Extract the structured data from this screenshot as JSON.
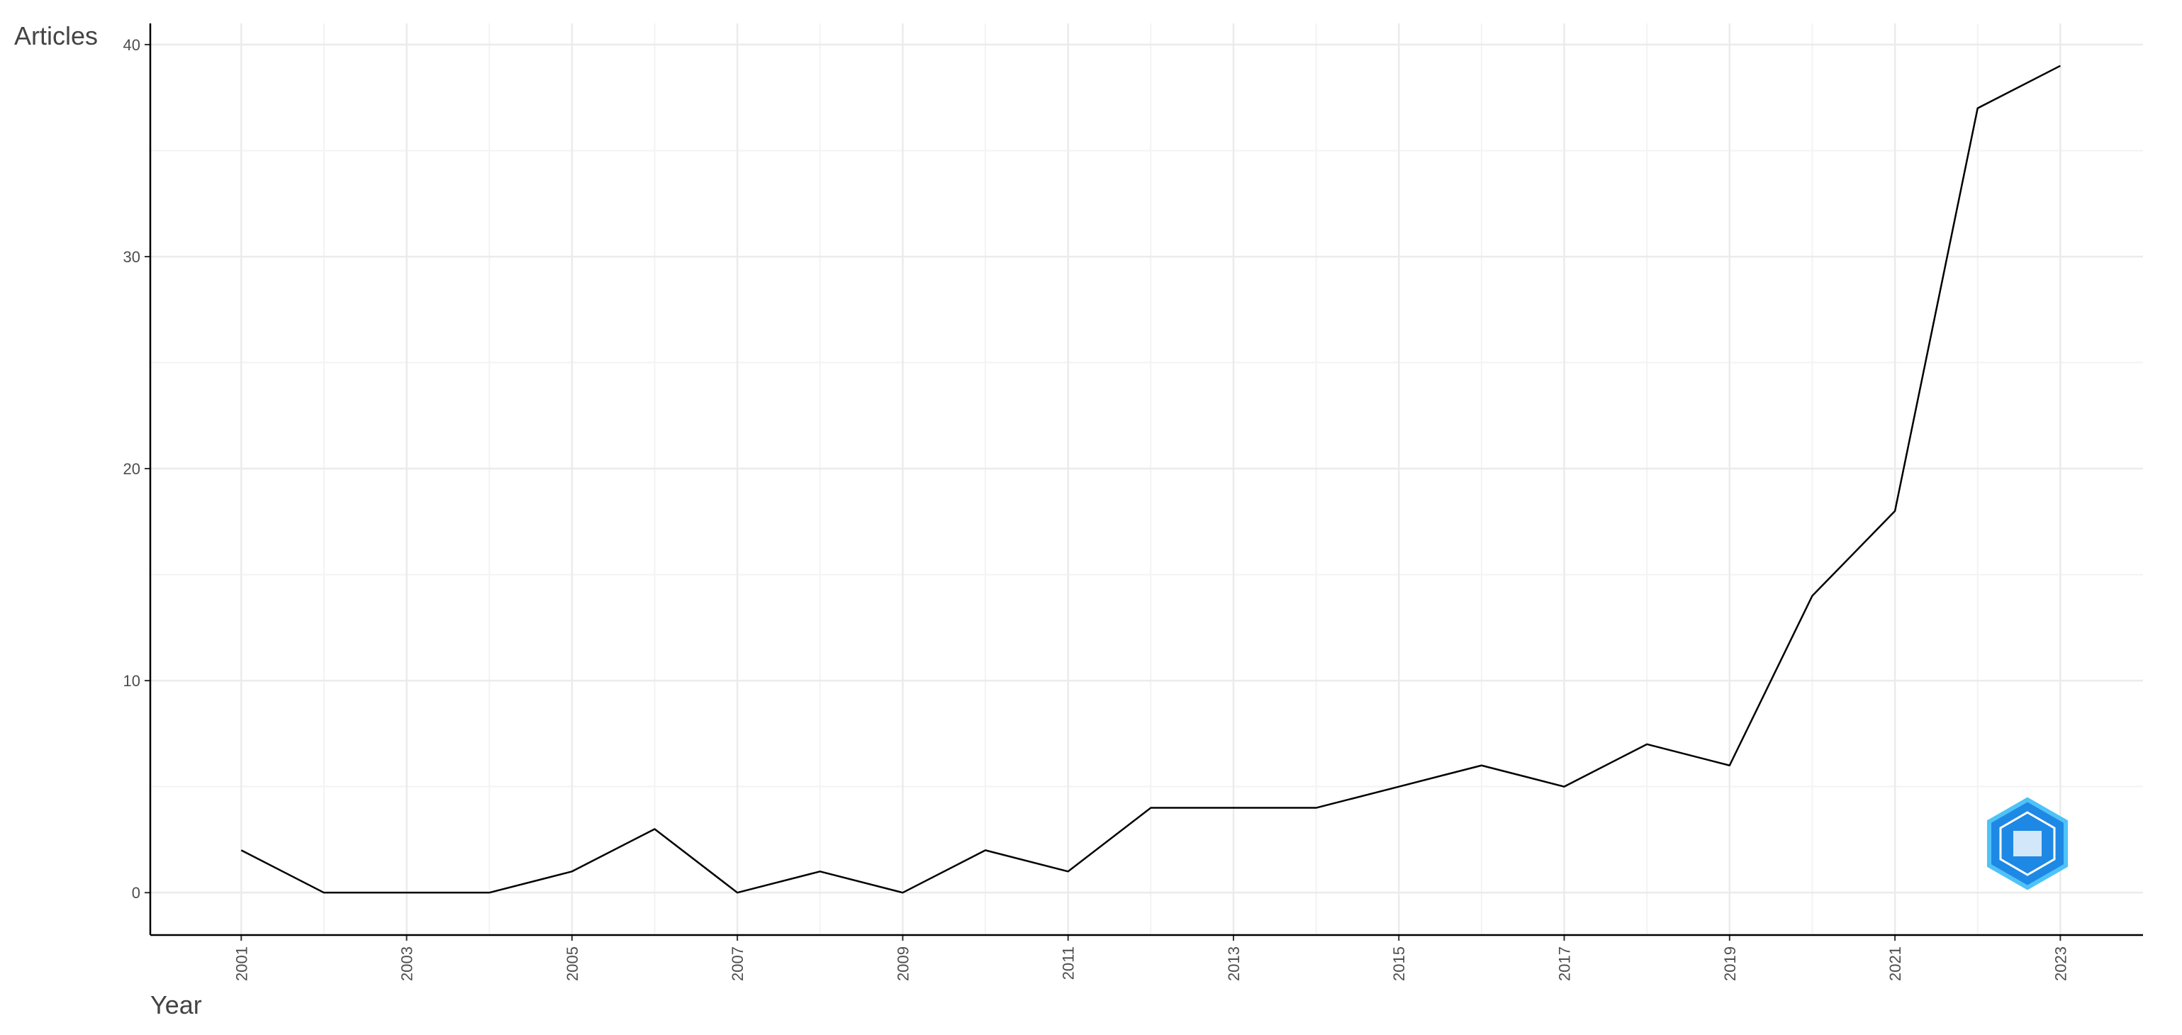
{
  "chart_data": {
    "type": "line",
    "x_label": "Year",
    "y_label": "Articles",
    "x": [
      2001,
      2002,
      2003,
      2004,
      2005,
      2006,
      2007,
      2008,
      2009,
      2010,
      2011,
      2012,
      2013,
      2014,
      2015,
      2016,
      2017,
      2018,
      2019,
      2020,
      2021,
      2022,
      2023
    ],
    "series": [
      {
        "color": "#000000",
        "values": [
          2,
          0,
          0,
          0,
          1,
          3,
          0,
          1,
          0,
          2,
          1,
          4,
          4,
          4,
          5,
          6,
          5,
          7,
          6,
          14,
          18,
          37,
          39
        ]
      }
    ],
    "xlim": [
      1999.9,
      2024
    ],
    "xticks": [
      2001,
      2003,
      2005,
      2007,
      2009,
      2011,
      2013,
      2015,
      2017,
      2019,
      2021,
      2023
    ],
    "ylim": [
      -2,
      41
    ],
    "yticks": [
      0,
      10,
      20,
      30,
      40
    ],
    "grid": true
  }
}
